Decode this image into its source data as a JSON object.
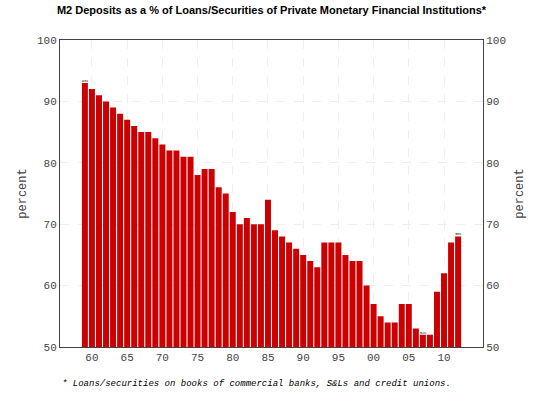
{
  "chart_data": {
    "type": "bar",
    "title": "M2 Deposits as a % of Loans/Securities of Private Monetary Financial Institutions*",
    "footnote": "* Loans/securities on books of commercial banks, S&Ls and credit unions.",
    "ylabel": "percent",
    "y2label": "percent",
    "categories": [
      null,
      "60",
      null,
      null,
      null,
      null,
      "65",
      null,
      null,
      null,
      null,
      "70",
      null,
      null,
      null,
      null,
      "75",
      null,
      null,
      null,
      null,
      "80",
      null,
      null,
      null,
      null,
      "85",
      null,
      null,
      null,
      null,
      "90",
      null,
      null,
      null,
      null,
      "95",
      null,
      null,
      null,
      null,
      "00",
      null,
      null,
      null,
      null,
      "05",
      null,
      null,
      null,
      null,
      "10",
      null,
      null
    ],
    "values": [
      93,
      92,
      91,
      90,
      89,
      88,
      87,
      86,
      85,
      85,
      84,
      83,
      82,
      82,
      81,
      81,
      78,
      79,
      79,
      76,
      75,
      72,
      70,
      71,
      70,
      70,
      74,
      69,
      68,
      67,
      66,
      65,
      64,
      63,
      67,
      67,
      67,
      65,
      64,
      64,
      60,
      57,
      55,
      54,
      54,
      57,
      57,
      53,
      52,
      52,
      59,
      62,
      67,
      68
    ],
    "value_labels": [
      "93%",
      null,
      null,
      null,
      null,
      null,
      null,
      null,
      null,
      null,
      null,
      null,
      null,
      null,
      null,
      null,
      null,
      null,
      null,
      null,
      null,
      null,
      null,
      null,
      null,
      null,
      null,
      null,
      null,
      null,
      null,
      null,
      null,
      null,
      null,
      null,
      null,
      null,
      null,
      null,
      null,
      null,
      null,
      null,
      null,
      null,
      null,
      null,
      "52%",
      null,
      null,
      null,
      null,
      "68%"
    ],
    "data_labels": true,
    "color": "#cc0000",
    "ylim": [
      50,
      100
    ],
    "yticks": [
      50,
      60,
      70,
      80,
      90,
      100
    ],
    "y2lim": [
      50,
      100
    ],
    "y2ticks": [
      50,
      60,
      70,
      80,
      90,
      100
    ],
    "grid": true
  }
}
